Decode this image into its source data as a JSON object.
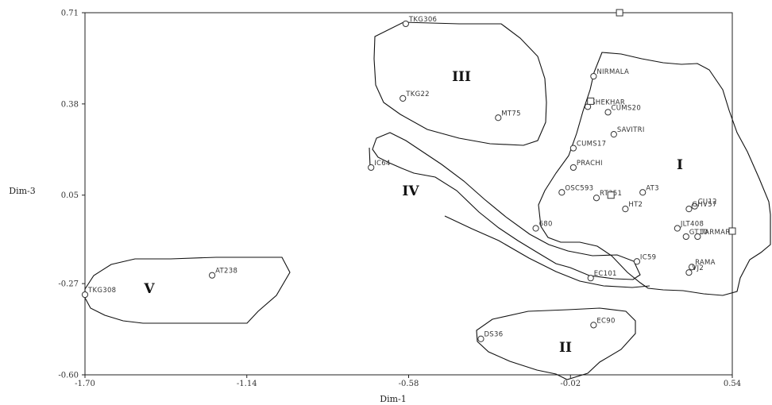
{
  "chart_data": {
    "type": "scatter",
    "xlabel": "Dim-1",
    "ylabel": "Dim-3",
    "xlim": [
      -1.7,
      0.54
    ],
    "ylim": [
      -0.6,
      0.71
    ],
    "xticks": [
      "-1.70",
      "-1.14",
      "-0.58",
      "-0.02",
      "0.54"
    ],
    "yticks": [
      "0.71",
      "0.38",
      "0.05",
      "-0.27",
      "-0.60"
    ],
    "points": [
      {
        "label": "TKG306",
        "x": -0.59,
        "y": 0.67
      },
      {
        "label": "TKG22",
        "x": -0.6,
        "y": 0.4
      },
      {
        "label": "MT75",
        "x": -0.27,
        "y": 0.33
      },
      {
        "label": "IC64",
        "x": -0.71,
        "y": 0.15
      },
      {
        "label": "AT238",
        "x": -1.26,
        "y": -0.24
      },
      {
        "label": "TKG308",
        "x": -1.7,
        "y": -0.31
      },
      {
        "label": "NIRMALA",
        "x": 0.06,
        "y": 0.48
      },
      {
        "label": "SHEKHAR",
        "x": 0.04,
        "y": 0.37
      },
      {
        "label": "CUMS20",
        "x": 0.11,
        "y": 0.35
      },
      {
        "label": "SAVITRI",
        "x": 0.13,
        "y": 0.27
      },
      {
        "label": "CUMS17",
        "x": -0.01,
        "y": 0.22
      },
      {
        "label": "PRACHI",
        "x": -0.01,
        "y": 0.15
      },
      {
        "label": "OSC593",
        "x": -0.05,
        "y": 0.06
      },
      {
        "label": "RT351",
        "x": 0.07,
        "y": 0.04
      },
      {
        "label": "AT3",
        "x": 0.23,
        "y": 0.06
      },
      {
        "label": "HT2",
        "x": 0.17,
        "y": 0.0
      },
      {
        "label": "CU12",
        "x": 0.41,
        "y": 0.01
      },
      {
        "label": "GHV57",
        "x": 0.39,
        "y": 0.0
      },
      {
        "label": "JLT408",
        "x": 0.35,
        "y": -0.07
      },
      {
        "label": "GT10",
        "x": 0.38,
        "y": -0.1
      },
      {
        "label": "TARMAR",
        "x": 0.42,
        "y": -0.1
      },
      {
        "label": "680",
        "x": -0.14,
        "y": -0.07
      },
      {
        "label": "IC59",
        "x": 0.21,
        "y": -0.19
      },
      {
        "label": "EC101",
        "x": 0.05,
        "y": -0.25
      },
      {
        "label": "RAMA",
        "x": 0.4,
        "y": -0.21
      },
      {
        "label": "VJ2",
        "x": 0.39,
        "y": -0.23
      },
      {
        "label": "EC90",
        "x": 0.06,
        "y": -0.42
      },
      {
        "label": "DS36",
        "x": -0.33,
        "y": -0.47
      }
    ],
    "squares": [
      {
        "x": 0.15,
        "y": 0.71
      },
      {
        "x": 0.05,
        "y": 0.39
      },
      {
        "x": 0.12,
        "y": 0.05
      },
      {
        "x": 0.54,
        "y": -0.08
      }
    ],
    "clusters": [
      "I",
      "II",
      "III",
      "IV",
      "V"
    ]
  }
}
